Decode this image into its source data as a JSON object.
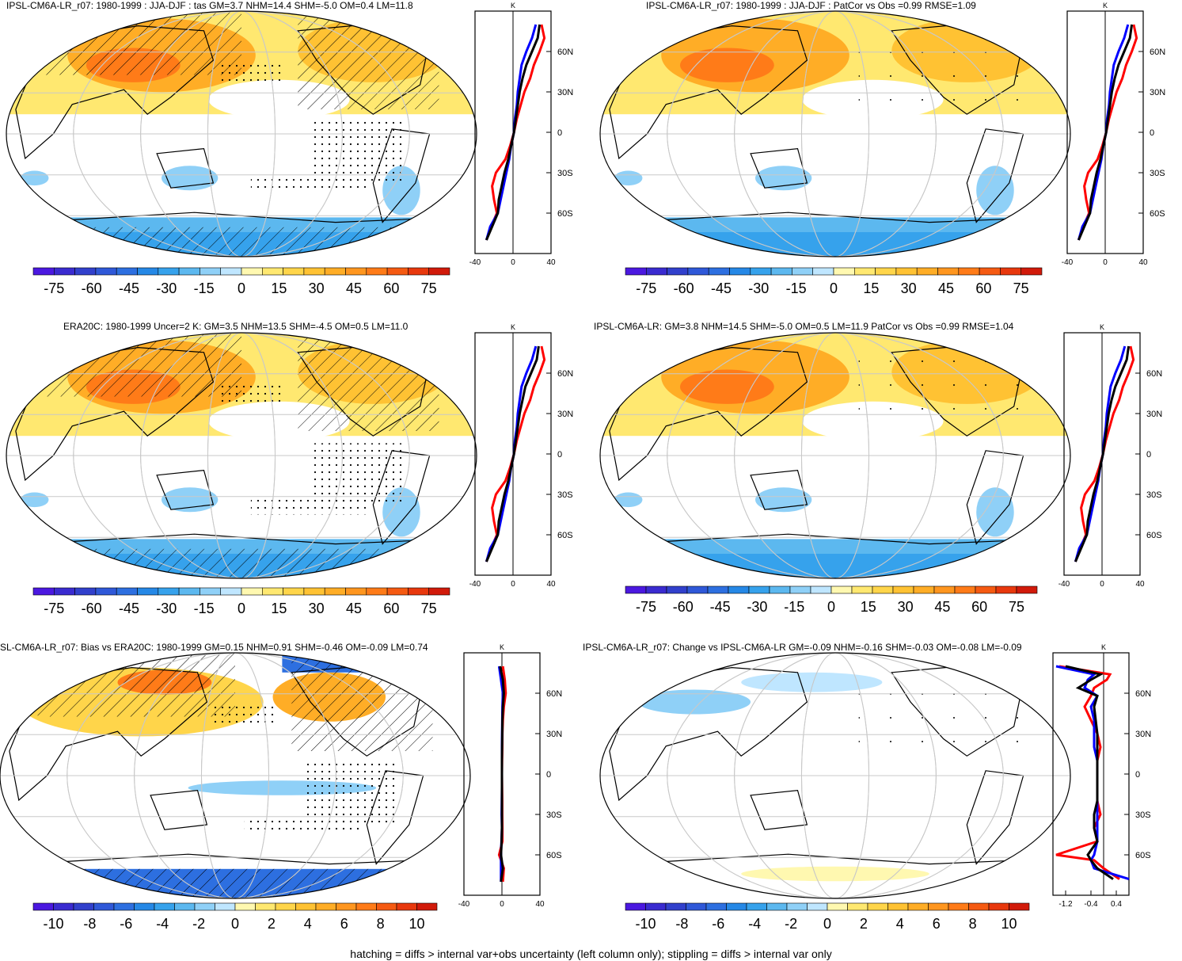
{
  "colors": {
    "warm": [
      "#fff8b0",
      "#ffe870",
      "#ffd54a",
      "#ffc233",
      "#ffad26",
      "#ff961f",
      "#ff7b18",
      "#f55a12",
      "#e8380d",
      "#d11a0a"
    ],
    "cool": [
      "#bfe6ff",
      "#8fd0f7",
      "#5cb8ef",
      "#36a2ec",
      "#2588e6",
      "#2d6fe0",
      "#2f58d8",
      "#3140cc",
      "#3a2bd0",
      "#4b18e0"
    ],
    "land": "#000000",
    "grid": "#c8c8c8",
    "line_model": "#000000",
    "line_nh": "#ff0000",
    "line_sh": "#0000ff"
  },
  "footer": "hatching = diffs > internal var+obs uncertainty (left column only); stippling = diffs > internal var only",
  "chart_data": [
    {
      "type": "map",
      "title": "IPSL-CM6A-LR_r07: 1980-1999 : JJA-DJF : tas GM=3.7 NHM=14.4 SHM=-5.0 OM=0.4 LM=11.8",
      "colorbar": {
        "ticks": [
          "-75",
          "-60",
          "-45",
          "-30",
          "-15",
          "0",
          "15",
          "30",
          "45",
          "60",
          "75"
        ],
        "range": [
          -75,
          75
        ]
      },
      "profile": {
        "unit": "K",
        "xticks": [
          "-40",
          "0",
          "40"
        ],
        "xlim": [
          -40,
          40
        ],
        "yticks": [
          "60N",
          "30N",
          "0",
          "30S",
          "60S"
        ],
        "lat": [
          80,
          70,
          60,
          50,
          40,
          30,
          20,
          10,
          0,
          -10,
          -20,
          -30,
          -40,
          -50,
          -60,
          -70,
          -80
        ],
        "model": [
          28,
          26,
          20,
          14,
          10,
          7,
          5,
          3,
          1,
          -2,
          -5,
          -9,
          -12,
          -15,
          -16,
          -22,
          -28
        ],
        "obs_max": [
          30,
          33,
          28,
          22,
          18,
          12,
          8,
          4,
          1,
          -3,
          -8,
          -18,
          -22,
          -20,
          -17,
          -23,
          -28
        ],
        "obs_min": [
          24,
          20,
          14,
          9,
          7,
          5,
          4,
          2,
          1,
          -2,
          -4,
          -7,
          -10,
          -13,
          -16,
          -24,
          -28
        ],
        "patterns": [
          "hatch",
          "stipple"
        ]
      }
    },
    {
      "type": "map",
      "title": "IPSL-CM6A-LR_r07: 1980-1999 : JJA-DJF : PatCor vs Obs =0.99 RMSE=1.09",
      "colorbar": {
        "ticks": [
          "-75",
          "-60",
          "-45",
          "-30",
          "-15",
          "0",
          "15",
          "30",
          "45",
          "60",
          "75"
        ],
        "range": [
          -75,
          75
        ]
      },
      "profile": {
        "unit": "K",
        "xticks": [
          "-40",
          "0",
          "40"
        ],
        "xlim": [
          -40,
          40
        ],
        "yticks": [
          "60N",
          "30N",
          "0",
          "30S",
          "60S"
        ],
        "lat": [
          80,
          70,
          60,
          50,
          40,
          30,
          20,
          10,
          0,
          -10,
          -20,
          -30,
          -40,
          -50,
          -60,
          -70,
          -80
        ],
        "model": [
          28,
          26,
          20,
          14,
          10,
          7,
          5,
          3,
          1,
          -2,
          -5,
          -9,
          -12,
          -15,
          -16,
          -22,
          -28
        ],
        "obs_max": [
          30,
          33,
          28,
          22,
          18,
          12,
          8,
          4,
          1,
          -3,
          -8,
          -18,
          -22,
          -20,
          -17,
          -23,
          -28
        ],
        "obs_min": [
          24,
          20,
          14,
          9,
          7,
          5,
          4,
          2,
          1,
          -2,
          -4,
          -7,
          -10,
          -13,
          -16,
          -24,
          -28
        ],
        "patterns": [
          "sparse"
        ]
      }
    },
    {
      "type": "map",
      "title": "ERA20C: 1980-1999 Uncer=2 K: GM=3.5 NHM=13.5 SHM=-4.5 OM=0.5 LM=11.0",
      "colorbar": {
        "ticks": [
          "-75",
          "-60",
          "-45",
          "-30",
          "-15",
          "0",
          "15",
          "30",
          "45",
          "60",
          "75"
        ],
        "range": [
          -75,
          75
        ]
      },
      "profile": {
        "unit": "K",
        "xticks": [
          "-40",
          "0",
          "40"
        ],
        "xlim": [
          -40,
          40
        ],
        "yticks": [
          "60N",
          "30N",
          "0",
          "30S",
          "60S"
        ],
        "lat": [
          80,
          70,
          60,
          50,
          40,
          30,
          20,
          10,
          0,
          -10,
          -20,
          -30,
          -40,
          -50,
          -60,
          -70,
          -80
        ],
        "model": [
          27,
          25,
          19,
          13,
          10,
          7,
          5,
          3,
          1,
          -2,
          -5,
          -9,
          -12,
          -15,
          -16,
          -22,
          -28
        ],
        "obs_max": [
          30,
          33,
          28,
          22,
          18,
          12,
          8,
          4,
          1,
          -3,
          -8,
          -18,
          -22,
          -20,
          -17,
          -23,
          -28
        ],
        "obs_min": [
          24,
          20,
          14,
          9,
          7,
          5,
          4,
          2,
          1,
          -2,
          -4,
          -7,
          -10,
          -13,
          -16,
          -24,
          -28
        ],
        "patterns": [
          "hatch",
          "stipple"
        ]
      }
    },
    {
      "type": "map",
      "title": "IPSL-CM6A-LR: GM=3.8 NHM=14.5 SHM=-5.0 OM=0.5 LM=11.9 PatCor vs Obs =0.99 RMSE=1.04",
      "colorbar": {
        "ticks": [
          "-75",
          "-60",
          "-45",
          "-30",
          "-15",
          "0",
          "15",
          "30",
          "45",
          "60",
          "75"
        ],
        "range": [
          -75,
          75
        ]
      },
      "profile": {
        "unit": "K",
        "xticks": [
          "-40",
          "0",
          "40"
        ],
        "xlim": [
          -40,
          40
        ],
        "yticks": [
          "60N",
          "30N",
          "0",
          "30S",
          "60S"
        ],
        "lat": [
          80,
          70,
          60,
          50,
          40,
          30,
          20,
          10,
          0,
          -10,
          -20,
          -30,
          -40,
          -50,
          -60,
          -70,
          -80
        ],
        "model": [
          28,
          26,
          20,
          14,
          10,
          7,
          5,
          3,
          1,
          -2,
          -5,
          -9,
          -12,
          -15,
          -16,
          -22,
          -28
        ],
        "obs_max": [
          30,
          33,
          28,
          22,
          18,
          12,
          8,
          4,
          1,
          -3,
          -8,
          -18,
          -22,
          -20,
          -17,
          -23,
          -28
        ],
        "obs_min": [
          24,
          20,
          14,
          9,
          7,
          5,
          4,
          2,
          1,
          -2,
          -4,
          -7,
          -10,
          -13,
          -16,
          -24,
          -28
        ],
        "patterns": [
          "sparse"
        ]
      }
    },
    {
      "type": "map",
      "title": "SL-CM6A-LR_r07: Bias vs ERA20C: 1980-1999 GM=0.15 NHM=0.91 SHM=-0.46 OM=-0.09 LM=0.74",
      "colorbar": {
        "ticks": [
          "-10",
          "-8",
          "-6",
          "-4",
          "-2",
          "0",
          "2",
          "4",
          "6",
          "8",
          "10"
        ],
        "range": [
          -10,
          10
        ]
      },
      "profile": {
        "unit": "K",
        "xticks": [
          "-40",
          "0",
          "40"
        ],
        "xlim": [
          -40,
          40
        ],
        "yticks": [
          "60N",
          "30N",
          "0",
          "30S",
          "60S"
        ],
        "lat": [
          80,
          70,
          60,
          50,
          40,
          30,
          20,
          10,
          0,
          -10,
          -20,
          -30,
          -40,
          -50,
          -60,
          -70,
          -80
        ],
        "model": [
          -2,
          1,
          2,
          1,
          0.5,
          0.3,
          0.2,
          0,
          0,
          0,
          0,
          0,
          0,
          -0.3,
          -1,
          1,
          -1
        ],
        "obs_max": [
          1,
          3,
          4,
          2,
          1,
          0.5,
          0.4,
          0.2,
          0,
          0.2,
          0.3,
          0.3,
          0.5,
          0.5,
          -3,
          2,
          1
        ],
        "obs_min": [
          -3,
          -1,
          1,
          0.5,
          0.3,
          0.2,
          0,
          0,
          0,
          0,
          -0.2,
          -0.3,
          0,
          -0.5,
          -1,
          -1,
          -1
        ],
        "patterns": [
          "hatch",
          "stipple"
        ]
      }
    },
    {
      "type": "map",
      "title": "IPSL-CM6A-LR_r07: Change vs IPSL-CM6A-LR GM=-0.09 NHM=-0.16 SHM=-0.03 OM=-0.08 LM=-0.09",
      "colorbar": {
        "ticks": [
          "-10",
          "-8",
          "-6",
          "-4",
          "-2",
          "0",
          "2",
          "4",
          "6",
          "8",
          "10"
        ],
        "range": [
          -10,
          10
        ]
      },
      "profile": {
        "unit": "K",
        "xticks": [
          "-1.2",
          "-0.4",
          "0.4"
        ],
        "xlim": [
          -1.6,
          0.8
        ],
        "yticks": [
          "60N",
          "30N",
          "0",
          "30S",
          "60S"
        ],
        "lat": [
          80,
          74,
          70,
          64,
          58,
          50,
          40,
          30,
          20,
          10,
          0,
          -10,
          -20,
          -30,
          -40,
          -50,
          -60,
          -64,
          -70,
          -78
        ],
        "model": [
          -1.2,
          -0.1,
          -0.4,
          -0.8,
          -0.2,
          -0.3,
          -0.25,
          -0.2,
          -0.2,
          -0.2,
          -0.2,
          -0.2,
          -0.2,
          -0.3,
          -0.3,
          -0.2,
          -0.5,
          -0.4,
          -0.2,
          0.3
        ],
        "obs_max": [
          -1.4,
          0.2,
          0.1,
          -0.3,
          -0.4,
          -0.6,
          -0.4,
          -0.2,
          -0.1,
          -0.2,
          -0.2,
          -0.2,
          -0.2,
          -0.1,
          -0.3,
          -0.2,
          -1.5,
          -0.3,
          0,
          0.5
        ],
        "obs_min": [
          -1.5,
          -0.3,
          -0.5,
          -0.6,
          -0.2,
          -0.4,
          -0.3,
          -0.3,
          -0.3,
          -0.2,
          -0.2,
          -0.2,
          -0.2,
          -0.2,
          -0.2,
          -0.2,
          -0.3,
          -0.4,
          -0.3,
          0.8
        ],
        "patterns": [
          "sparse"
        ]
      }
    }
  ]
}
